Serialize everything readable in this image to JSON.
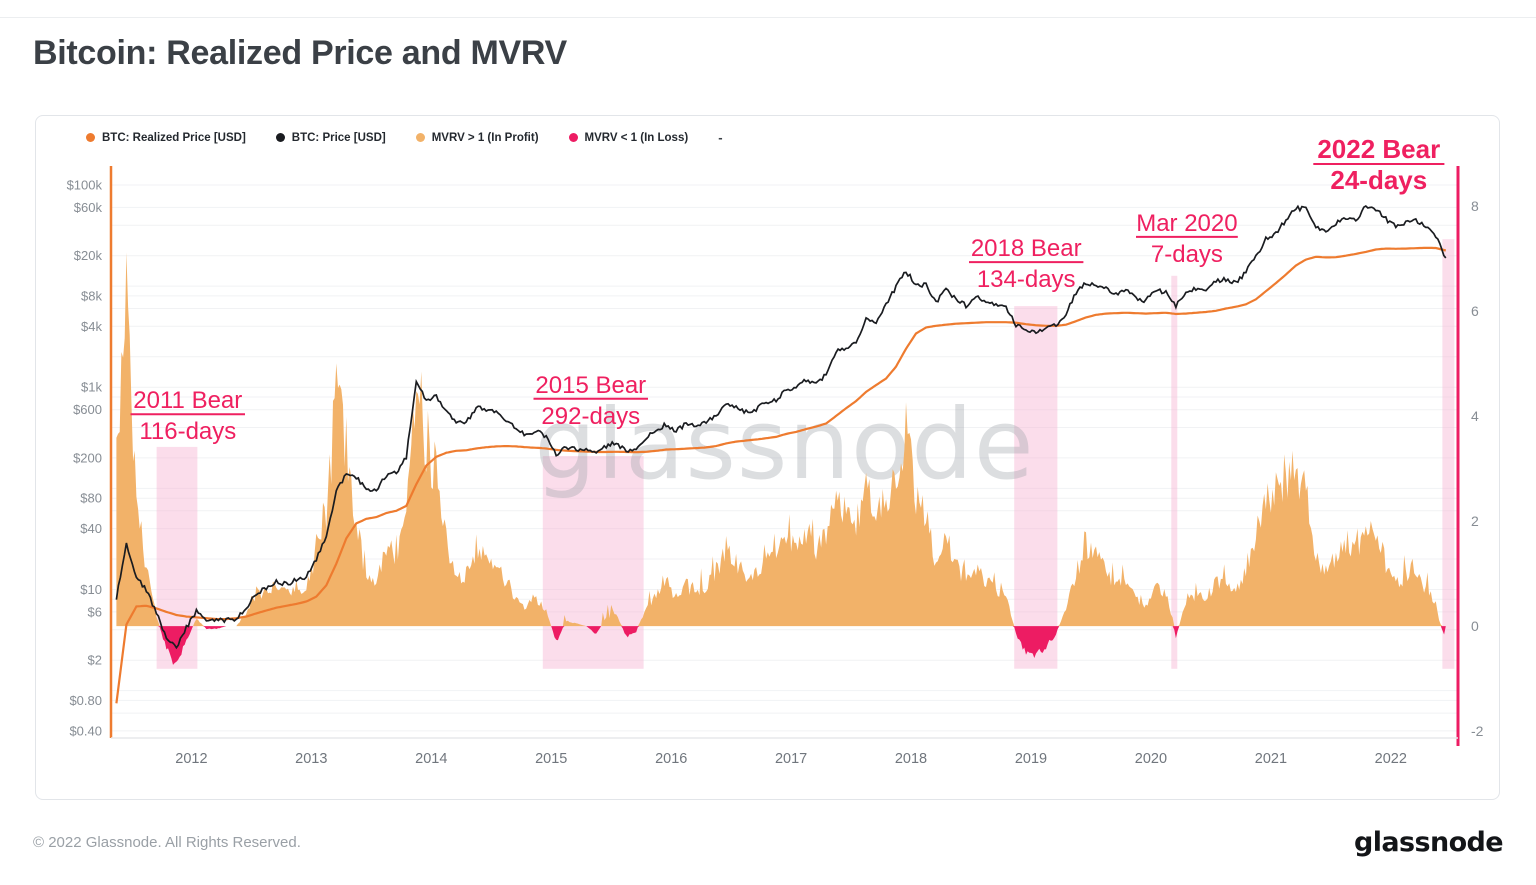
{
  "page": {
    "title": "Bitcoin: Realized Price and MVRV",
    "footer_copyright": "© 2022 Glassnode. All Rights Reserved.",
    "brand_logo": "glassnode",
    "watermark": "glassnode"
  },
  "legend": [
    {
      "label": "BTC: Realized Price [USD]",
      "color": "#ee7b2f",
      "key": "realized-price"
    },
    {
      "label": "BTC: Price [USD]",
      "color": "#1a1c20",
      "key": "price"
    },
    {
      "label": "MVRV > 1 (In Profit)",
      "color": "#f2b269",
      "key": "mvrv-profit"
    },
    {
      "label": "MVRV < 1 (In Loss)",
      "color": "#ed1c63",
      "key": "mvrv-loss"
    },
    {
      "label": "-",
      "color": null,
      "key": "dash"
    }
  ],
  "chart_data": {
    "type": "line+area",
    "title": "Bitcoin: Realized Price and MVRV",
    "x0": 2011.375,
    "dx": 0.0833333,
    "x_range": [
      2011.33,
      2022.56
    ],
    "x_ticks": [
      2012,
      2013,
      2014,
      2015,
      2016,
      2017,
      2018,
      2019,
      2020,
      2021,
      2022
    ],
    "left_axis": {
      "scale": "log",
      "range": [
        0.34,
        154000
      ],
      "color": "#ee7b2f",
      "text_color": "#878d94",
      "ticks": [
        {
          "label": "$100k",
          "value": 100000
        },
        {
          "label": "$60k",
          "value": 60000
        },
        {
          "label": "$20k",
          "value": 20000
        },
        {
          "label": "$8k",
          "value": 8000
        },
        {
          "label": "$4k",
          "value": 4000
        },
        {
          "label": "$1k",
          "value": 1000
        },
        {
          "label": "$600",
          "value": 600
        },
        {
          "label": "$200",
          "value": 200
        },
        {
          "label": "$80",
          "value": 80
        },
        {
          "label": "$40",
          "value": 40
        },
        {
          "label": "$10",
          "value": 10
        },
        {
          "label": "$6",
          "value": 6
        },
        {
          "label": "$2",
          "value": 2
        },
        {
          "label": "$0.80",
          "value": 0.8
        },
        {
          "label": "$0.40",
          "value": 0.4
        }
      ]
    },
    "right_axis": {
      "scale": "linear",
      "range": [
        -2.13,
        8.76
      ],
      "color": "#ed1c63",
      "text_color": "#878d94",
      "ticks": [
        8,
        6,
        4,
        2,
        0,
        -2
      ]
    },
    "grid_values": [
      100000,
      60000,
      40000,
      20000,
      10000,
      8000,
      6000,
      4000,
      2000,
      1000,
      800,
      600,
      400,
      200,
      100,
      80,
      60,
      40,
      20,
      10,
      8,
      6,
      4,
      2,
      1,
      0.8,
      0.6,
      0.4
    ],
    "series": [
      {
        "name": "BTC: Price [USD]",
        "type": "line",
        "axis": "left",
        "color": "#1a1c20",
        "values": [
          8.2,
          29,
          13.5,
          9.8,
          5.9,
          3.3,
          2.6,
          4.2,
          6.1,
          5.0,
          4.9,
          5.0,
          5.1,
          6.6,
          9.2,
          10.2,
          12.2,
          11.2,
          12.4,
          13.4,
          20,
          33,
          93,
          139,
          128,
          97,
          98,
          135,
          141,
          204,
          1120,
          732,
          805,
          565,
          455,
          447,
          627,
          597,
          582,
          478,
          388,
          338,
          376,
          318,
          217,
          254,
          244,
          236,
          230,
          262,
          284,
          230,
          236,
          314,
          377,
          430,
          369,
          437,
          416,
          449,
          531,
          672,
          624,
          574,
          608,
          701,
          744,
          963,
          964,
          1190,
          1079,
          1348,
          2287,
          2481,
          2874,
          4703,
          4360,
          6451,
          9916,
          14112,
          10208,
          10319,
          6928,
          9240,
          7494,
          6398,
          7748,
          7033,
          6625,
          6303,
          4017,
          3742,
          3457,
          3854,
          4105,
          5320,
          8558,
          10796,
          10085,
          9594,
          8293,
          9152,
          7546,
          7193,
          9349,
          8543,
          6438,
          8629,
          9454,
          9137,
          11351,
          11655,
          10779,
          13797,
          19698,
          28990,
          33108,
          45164,
          58763,
          57720,
          37298,
          35026,
          41626,
          47130,
          43824,
          61318,
          56987,
          46211,
          38491,
          43193,
          45528,
          37644,
          31784,
          19017
        ]
      },
      {
        "name": "BTC: Realized Price [USD]",
        "type": "line",
        "axis": "left",
        "color": "#ee7b2f",
        "values": [
          0.75,
          4.5,
          6.8,
          6.9,
          6.5,
          6.0,
          5.6,
          5.4,
          5.3,
          5.2,
          5.1,
          5.1,
          5.2,
          5.4,
          5.8,
          6.2,
          6.6,
          6.9,
          7.2,
          7.6,
          8.5,
          11,
          18,
          32,
          45,
          50,
          52,
          57,
          60,
          67,
          110,
          168,
          205,
          225,
          235,
          238,
          248,
          255,
          260,
          262,
          260,
          255,
          252,
          248,
          240,
          236,
          233,
          231,
          229,
          229,
          230,
          229,
          228,
          230,
          235,
          242,
          244,
          247,
          250,
          254,
          262,
          278,
          290,
          297,
          304,
          313,
          323,
          345,
          362,
          385,
          408,
          438,
          520,
          620,
          730,
          900,
          1050,
          1220,
          1600,
          2400,
          3400,
          3900,
          4050,
          4150,
          4250,
          4300,
          4350,
          4400,
          4400,
          4400,
          4350,
          4200,
          4100,
          4050,
          4050,
          4150,
          4500,
          4900,
          5200,
          5350,
          5400,
          5450,
          5400,
          5350,
          5400,
          5450,
          5300,
          5350,
          5450,
          5550,
          5700,
          6000,
          6250,
          6600,
          7400,
          8900,
          10700,
          13000,
          16000,
          18300,
          19500,
          19200,
          19300,
          20000,
          20800,
          21800,
          23000,
          23500,
          23400,
          23500,
          23700,
          23900,
          23800,
          22500
        ]
      },
      {
        "name": "MVRV deviation (profit above 0, loss below 0)",
        "type": "area",
        "axis": "right",
        "color_positive": "#f2b269",
        "color_negative": "#ed1c63",
        "values": [
          3.2,
          6.9,
          2.1,
          1.1,
          0.2,
          -0.45,
          -0.72,
          -0.3,
          0.15,
          -0.05,
          -0.05,
          0.0,
          0.0,
          0.25,
          0.6,
          0.65,
          0.85,
          0.6,
          0.7,
          0.75,
          1.3,
          2.1,
          4.3,
          3.4,
          1.9,
          0.95,
          0.9,
          1.4,
          1.35,
          2.0,
          4.9,
          3.4,
          3.0,
          1.5,
          0.95,
          0.9,
          1.5,
          1.3,
          1.2,
          0.8,
          0.5,
          0.35,
          0.5,
          0.3,
          -0.3,
          0.1,
          0.05,
          0.0,
          -0.15,
          0.15,
          0.25,
          -0.2,
          -0.1,
          0.35,
          0.6,
          0.8,
          0.5,
          0.75,
          0.65,
          0.75,
          1.0,
          1.4,
          1.15,
          0.95,
          1.0,
          1.25,
          1.3,
          1.8,
          1.6,
          1.8,
          1.5,
          1.8,
          2.4,
          2.1,
          1.9,
          2.6,
          2.1,
          2.3,
          3.0,
          3.7,
          2.4,
          2.2,
          1.1,
          1.6,
          1.2,
          0.85,
          1.05,
          0.85,
          0.7,
          0.6,
          -0.15,
          -0.5,
          -0.55,
          -0.4,
          -0.15,
          0.35,
          1.0,
          1.55,
          1.3,
          1.1,
          0.75,
          0.85,
          0.5,
          0.4,
          0.75,
          0.6,
          -0.2,
          0.45,
          0.6,
          0.55,
          0.8,
          0.85,
          0.7,
          1.1,
          1.7,
          2.3,
          2.5,
          2.9,
          2.85,
          2.5,
          1.25,
          1.1,
          1.3,
          1.6,
          1.4,
          1.95,
          1.75,
          1.2,
          0.8,
          0.95,
          1.05,
          0.7,
          0.35,
          -0.3
        ]
      }
    ],
    "bear_markets": [
      {
        "title": "2011 Bear",
        "subtitle": "116-days",
        "from": 2011.71,
        "to": 2012.05,
        "band_top": 0.491,
        "band_bottom": 0.879,
        "label_x": 2011.97,
        "label_y": 0.385,
        "bold": false
      },
      {
        "title": "2015 Bear",
        "subtitle": "292-days",
        "from": 2014.93,
        "to": 2015.77,
        "band_top": 0.507,
        "band_bottom": 0.879,
        "label_x": 2015.33,
        "label_y": 0.358,
        "bold": false
      },
      {
        "title": "2018 Bear",
        "subtitle": "134-days",
        "from": 2018.86,
        "to": 2019.22,
        "band_top": 0.245,
        "band_bottom": 0.879,
        "label_x": 2018.96,
        "label_y": 0.119,
        "bold": false
      },
      {
        "title": "Mar 2020",
        "subtitle": "7-days",
        "from": 2020.17,
        "to": 2020.22,
        "band_top": 0.192,
        "band_bottom": 0.879,
        "label_x": 2020.3,
        "label_y": 0.075,
        "bold": false
      },
      {
        "title": "2022 Bear",
        "subtitle": "24-days",
        "from": 2022.43,
        "to": 2022.53,
        "band_top": 0.128,
        "band_bottom": 0.879,
        "label_x": 2021.9,
        "label_y": -0.056,
        "bold": true
      }
    ],
    "band_color": "#f7b3d2",
    "annotation_color": "#ef2060",
    "grid_color": "#f1f2f4"
  }
}
